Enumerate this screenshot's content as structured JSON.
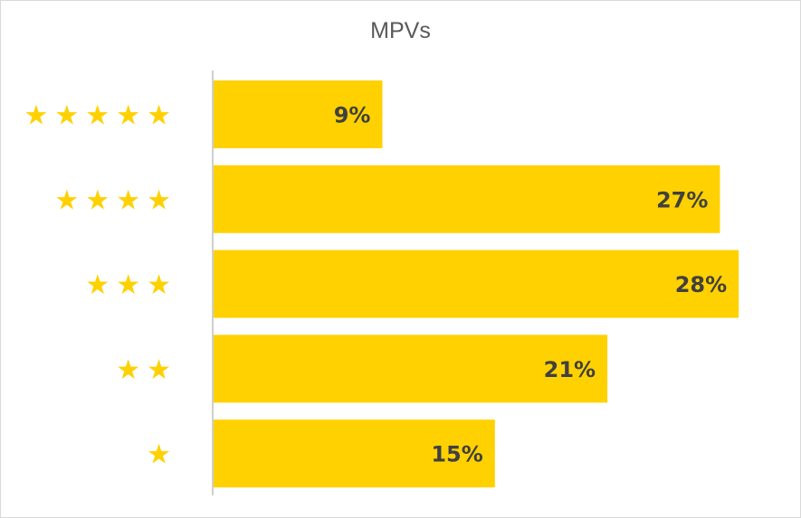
{
  "chart_data": {
    "type": "bar",
    "orientation": "horizontal",
    "title": "MPVs",
    "categories": [
      "★★★★★",
      "★★★★",
      "★★★",
      "★★",
      "★"
    ],
    "values": [
      9,
      27,
      28,
      21,
      15
    ],
    "value_labels": [
      "9%",
      "27%",
      "28%",
      "21%",
      "15%"
    ],
    "unit": "%",
    "xlim": [
      0,
      30
    ],
    "grid": false,
    "legend": "none"
  },
  "colors": {
    "bar": "#FFD100",
    "star": "#FFD100",
    "label_text": "#404040",
    "title_text": "#595959",
    "axis_line": "#bfbfbf",
    "border": "#d9d9d9"
  }
}
